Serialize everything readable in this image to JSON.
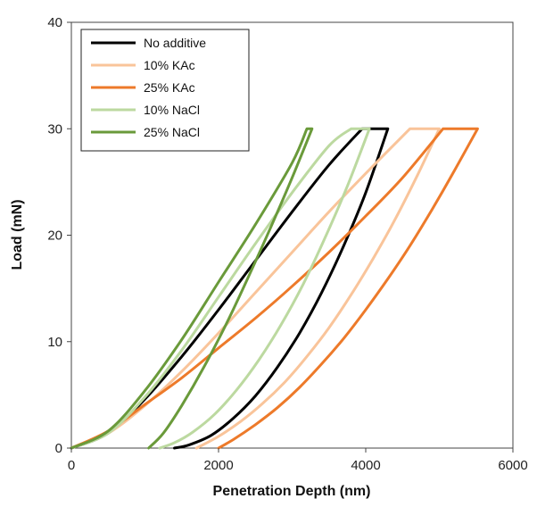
{
  "chart_data": {
    "type": "line",
    "xlabel": "Penetration Depth (nm)",
    "ylabel": "Load (mN)",
    "xlim": [
      0,
      6000
    ],
    "ylim": [
      0,
      40
    ],
    "xticks": [
      0,
      2000,
      4000,
      6000
    ],
    "yticks": [
      0,
      10,
      20,
      30,
      40
    ],
    "xtick_labels": [
      "0",
      "2000",
      "4000",
      "6000"
    ],
    "ytick_labels": [
      "0",
      "10",
      "20",
      "30",
      "40"
    ],
    "grid": false,
    "legend_position": "top-left",
    "series": [
      {
        "name": "No additive",
        "color": "#000000",
        "loading": {
          "x": [
            0,
            500,
            1000,
            1500,
            2000,
            2500,
            3000,
            3500,
            3950
          ],
          "y": [
            0,
            1.4,
            4.6,
            8.6,
            13.0,
            17.6,
            22.2,
            26.6,
            30
          ]
        },
        "hold": {
          "x": [
            3950,
            4300
          ],
          "y": [
            30,
            30
          ]
        },
        "unloading": {
          "x": [
            4300,
            4000,
            3700,
            3400,
            3100,
            2800,
            2500,
            2200,
            1900,
            1600,
            1400
          ],
          "y": [
            30,
            24.0,
            19.0,
            14.6,
            10.8,
            7.6,
            4.9,
            2.8,
            1.2,
            0.3,
            0
          ]
        }
      },
      {
        "name": "10% KAc",
        "color": "#f9c49a",
        "loading": {
          "x": [
            0,
            500,
            1000,
            1500,
            2000,
            2500,
            3000,
            3500,
            4000,
            4600
          ],
          "y": [
            0,
            1.4,
            4.0,
            7.2,
            10.8,
            14.6,
            18.4,
            22.2,
            25.8,
            30
          ]
        },
        "hold": {
          "x": [
            4600,
            5000
          ],
          "y": [
            30,
            30
          ]
        },
        "unloading": {
          "x": [
            5000,
            4700,
            4400,
            4100,
            3800,
            3500,
            3200,
            2900,
            2600,
            2300,
            2000,
            1700
          ],
          "y": [
            30,
            25.6,
            21.5,
            17.8,
            14.4,
            11.3,
            8.6,
            6.2,
            4.2,
            2.5,
            1.1,
            0
          ]
        }
      },
      {
        "name": "25% KAc",
        "color": "#ed7a2a",
        "loading": {
          "x": [
            0,
            500,
            1000,
            1500,
            2000,
            2500,
            3000,
            3500,
            4000,
            4500,
            5050
          ],
          "y": [
            0,
            1.6,
            4.1,
            6.6,
            9.4,
            12.2,
            15.2,
            18.4,
            21.8,
            25.4,
            30
          ]
        },
        "hold": {
          "x": [
            5050,
            5520
          ],
          "y": [
            30,
            30
          ]
        },
        "unloading": {
          "x": [
            5520,
            5200,
            4900,
            4600,
            4300,
            4000,
            3700,
            3400,
            3100,
            2800,
            2500,
            2200,
            2000
          ],
          "y": [
            30,
            26.0,
            22.4,
            19.0,
            15.9,
            13.0,
            10.3,
            7.9,
            5.7,
            3.8,
            2.2,
            0.8,
            0
          ]
        }
      },
      {
        "name": "10% NaCl",
        "color": "#bcd9a0",
        "loading": {
          "x": [
            0,
            500,
            1000,
            1500,
            2000,
            2500,
            3000,
            3500,
            3800
          ],
          "y": [
            0,
            1.4,
            4.8,
            9.2,
            14.2,
            19.2,
            24.0,
            28.4,
            30
          ]
        },
        "hold": {
          "x": [
            3800,
            4050
          ],
          "y": [
            30,
            30
          ]
        },
        "unloading": {
          "x": [
            4050,
            3750,
            3450,
            3150,
            2850,
            2550,
            2250,
            1950,
            1650,
            1400,
            1200
          ],
          "y": [
            30,
            24.6,
            19.8,
            15.4,
            11.6,
            8.3,
            5.5,
            3.2,
            1.5,
            0.5,
            0
          ]
        }
      },
      {
        "name": "25% NaCl",
        "color": "#6a9a3a",
        "loading": {
          "x": [
            0,
            500,
            1000,
            1500,
            2000,
            2500,
            3000,
            3200
          ],
          "y": [
            0,
            1.6,
            5.4,
            10.2,
            15.6,
            21.0,
            26.8,
            30
          ]
        },
        "hold": {
          "x": [
            3200,
            3270
          ],
          "y": [
            30,
            30
          ]
        },
        "unloading": {
          "x": [
            3270,
            3000,
            2700,
            2400,
            2100,
            1800,
            1500,
            1250,
            1050
          ],
          "y": [
            30,
            25.4,
            20.6,
            16.0,
            11.6,
            7.6,
            4.0,
            1.4,
            0
          ]
        }
      }
    ]
  }
}
